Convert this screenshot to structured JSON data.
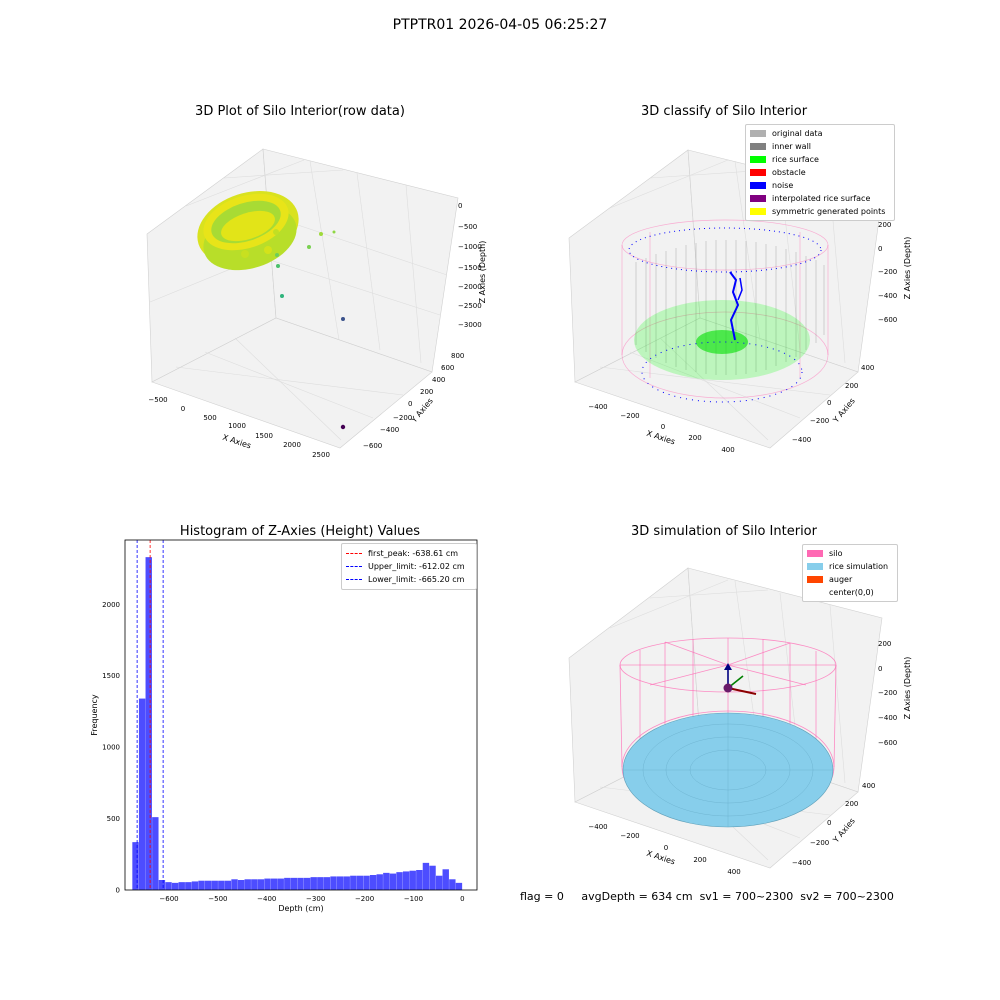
{
  "page_title": "PTPTR01 2026-04-05 06:25:27",
  "footer": {
    "flag": "flag = 0",
    "avg_depth": "avgDepth = 634 cm",
    "sv1": "sv1 = 700~2300",
    "sv2": "sv2 = 700~2300"
  },
  "colors": {
    "histogram_bar": "#4d4dff",
    "silo": "#ff69b4",
    "rice": "#87ceeb",
    "auger": "#ff4500"
  },
  "chart_data": [
    {
      "type": "scatter3d",
      "title": "3D Plot of Silo Interior(row data)",
      "xlabel": "X Axies",
      "ylabel": "Y Axies",
      "zlabel": "Z Axies (Depth)",
      "x_ticks": [
        "−500",
        "0",
        "500",
        "1000",
        "1500",
        "2000",
        "2500"
      ],
      "y_ticks": [
        "−600",
        "−400",
        "−200",
        "0",
        "200",
        "400",
        "600",
        "800"
      ],
      "z_ticks": [
        "0",
        "−500",
        "−1000",
        "−1500",
        "−2000",
        "−2500",
        "−3000"
      ],
      "colormap": "viridis"
    },
    {
      "type": "scatter3d",
      "title": "3D classify of Silo Interior",
      "xlabel": "X Axies",
      "ylabel": "Y Axies",
      "zlabel": "Z Axies (Depth)",
      "x_ticks": [
        "−400",
        "−200",
        "0",
        "200",
        "400"
      ],
      "y_ticks": [
        "−400",
        "−200",
        "0",
        "200",
        "400"
      ],
      "z_ticks": [
        "200",
        "0",
        "−200",
        "−400",
        "−600"
      ],
      "legend": [
        {
          "label": "original data",
          "color": "#b0b0b0"
        },
        {
          "label": "inner wall",
          "color": "#808080"
        },
        {
          "label": "rice surface",
          "color": "#00ff00"
        },
        {
          "label": "obstacle",
          "color": "#ff0000"
        },
        {
          "label": "noise",
          "color": "#0000ff"
        },
        {
          "label": "interpolated rice surface",
          "color": "#800080"
        },
        {
          "label": "symmetric generated points",
          "color": "#ffff00"
        }
      ]
    },
    {
      "type": "bar",
      "title": "Histogram of Z-Axies (Height) Values",
      "xlabel": "Depth (cm)",
      "ylabel": "Frequency",
      "xlim": [
        -690,
        30
      ],
      "ylim": [
        0,
        2450
      ],
      "x_ticks": [
        "−600",
        "−500",
        "−400",
        "−300",
        "−200",
        "−100",
        "0"
      ],
      "y_ticks": [
        "0",
        "500",
        "1000",
        "1500",
        "2000"
      ],
      "bin_width": 13.5,
      "bin_starts": [
        -675,
        -661.5,
        -648,
        -634.5,
        -621,
        -607.5,
        -594,
        -580.5,
        -567,
        -553.5,
        -540,
        -526.5,
        -513,
        -499.5,
        -486,
        -472.5,
        -459,
        -445.5,
        -432,
        -418.5,
        -405,
        -391.5,
        -378,
        -364.5,
        -351,
        -337.5,
        -324,
        -310.5,
        -297,
        -283.5,
        -270,
        -256.5,
        -243,
        -229.5,
        -216,
        -202.5,
        -189,
        -175.5,
        -162,
        -148.5,
        -135,
        -121.5,
        -108,
        -94.5,
        -81,
        -67.5,
        -54,
        -40.5,
        -27,
        -13.5
      ],
      "values": [
        335,
        1340,
        2330,
        510,
        70,
        55,
        50,
        55,
        55,
        60,
        65,
        65,
        65,
        65,
        65,
        75,
        70,
        75,
        75,
        75,
        80,
        80,
        80,
        85,
        85,
        85,
        85,
        90,
        90,
        90,
        95,
        95,
        95,
        100,
        100,
        100,
        105,
        110,
        120,
        115,
        125,
        130,
        135,
        140,
        190,
        170,
        100,
        145,
        75,
        50
      ],
      "legend": [
        {
          "label": "first_peak: -638.61 cm",
          "color": "#ff0000",
          "value": -638.61
        },
        {
          "label": "Upper_limit: -612.02 cm",
          "color": "#0000ff",
          "value": -612.02
        },
        {
          "label": "Lower_limit: -665.20 cm",
          "color": "#0000ff",
          "value": -665.2
        }
      ]
    },
    {
      "type": "surface3d",
      "title": "3D simulation of Silo Interior",
      "xlabel": "X Axies",
      "ylabel": "Y Axies",
      "zlabel": "Z Axies (Depth)",
      "x_ticks": [
        "−400",
        "−200",
        "0",
        "200",
        "400"
      ],
      "y_ticks": [
        "−400",
        "−200",
        "0",
        "200",
        "400"
      ],
      "z_ticks": [
        "200",
        "0",
        "−200",
        "−400",
        "−600"
      ],
      "legend": [
        {
          "label": "silo",
          "color": "#ff69b4"
        },
        {
          "label": "rice simulation",
          "color": "#87ceeb"
        },
        {
          "label": "auger",
          "color": "#ff4500"
        },
        {
          "label": "center(0,0)",
          "color": ""
        }
      ]
    }
  ]
}
